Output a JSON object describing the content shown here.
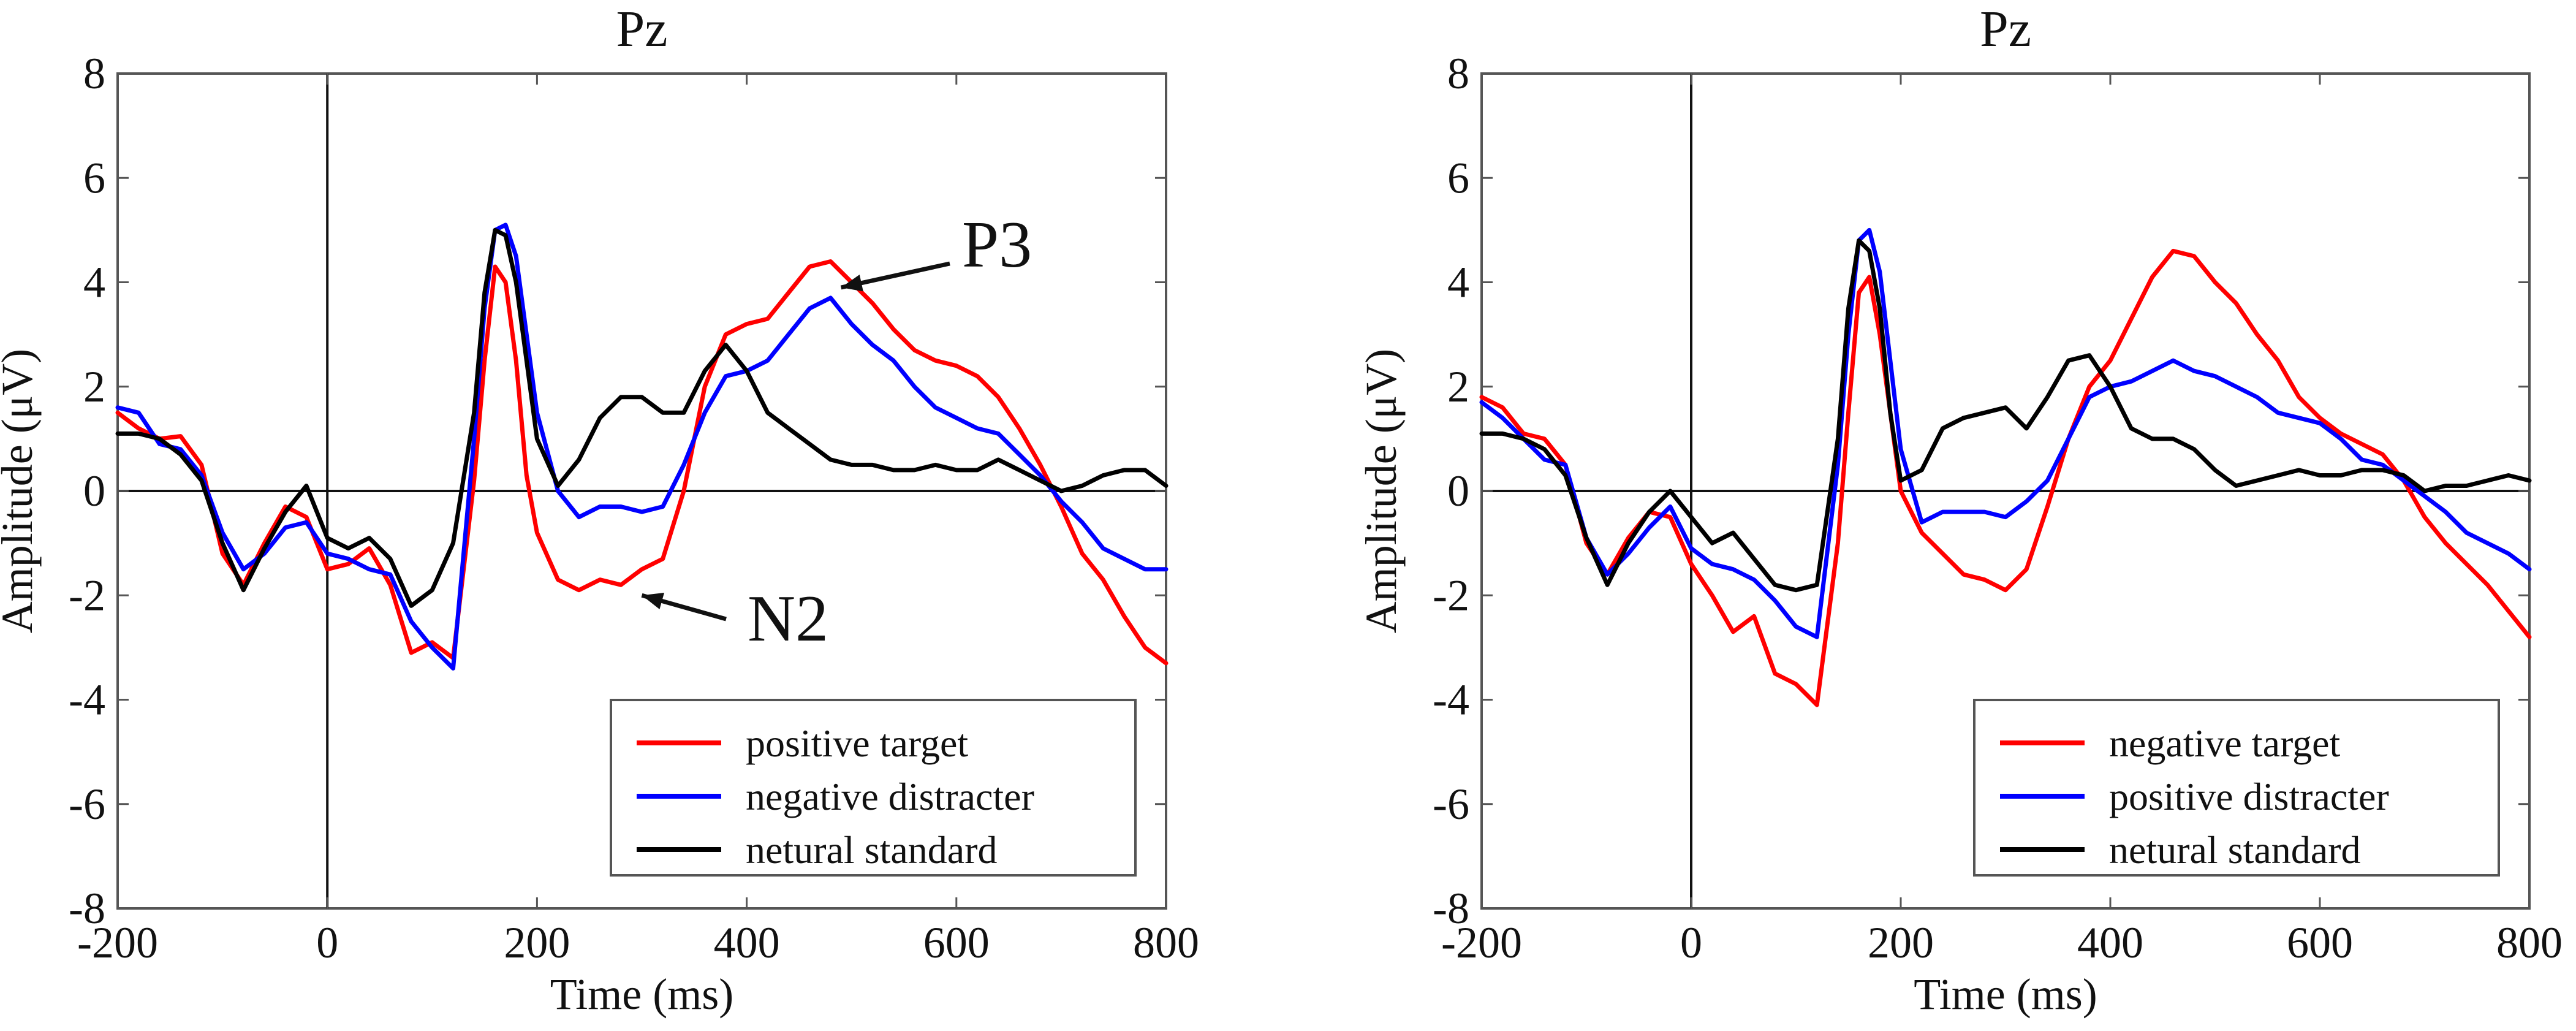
{
  "chart_data": [
    {
      "type": "line",
      "title": "Pz",
      "xlabel": "Time (ms)",
      "ylabel": "Amplitude (μV)",
      "xlim": [
        -200,
        800
      ],
      "ylim": [
        -8,
        8
      ],
      "x_ticks": [
        -200,
        0,
        200,
        400,
        600,
        800
      ],
      "x_tick_labels": [
        "-200",
        "0",
        "200",
        "400",
        "600",
        "800"
      ],
      "y_ticks": [
        -8,
        -6,
        -4,
        -2,
        0,
        2,
        4,
        6,
        8
      ],
      "y_tick_labels": [
        "-8",
        "-6",
        "-4",
        "-2",
        "0",
        "2",
        "4",
        "6",
        "8"
      ],
      "legend_position": "bottom-right",
      "annotations": [
        {
          "text": "P3",
          "target": [
            490,
            3.9
          ]
        },
        {
          "text": "N2",
          "target": [
            300,
            -2.0
          ]
        }
      ],
      "series": [
        {
          "name": "positive target",
          "color": "#ff0000",
          "x": [
            -200,
            -180,
            -160,
            -140,
            -120,
            -100,
            -80,
            -60,
            -40,
            -20,
            0,
            20,
            40,
            60,
            80,
            100,
            120,
            140,
            150,
            160,
            170,
            180,
            190,
            200,
            220,
            240,
            260,
            280,
            300,
            320,
            340,
            360,
            380,
            400,
            420,
            440,
            460,
            480,
            500,
            520,
            540,
            560,
            580,
            600,
            620,
            640,
            660,
            680,
            700,
            720,
            740,
            760,
            780,
            800
          ],
          "values": [
            1.5,
            1.2,
            1.0,
            1.05,
            0.5,
            -1.2,
            -1.8,
            -1.0,
            -0.3,
            -0.5,
            -1.5,
            -1.4,
            -1.1,
            -1.8,
            -3.1,
            -2.9,
            -3.2,
            0.2,
            2.5,
            4.3,
            4.0,
            2.5,
            0.3,
            -0.8,
            -1.7,
            -1.9,
            -1.7,
            -1.8,
            -1.5,
            -1.3,
            0.0,
            2.0,
            3.0,
            3.2,
            3.3,
            3.8,
            4.3,
            4.4,
            4.0,
            3.6,
            3.1,
            2.7,
            2.5,
            2.4,
            2.2,
            1.8,
            1.2,
            0.5,
            -0.3,
            -1.2,
            -1.7,
            -2.4,
            -3.0,
            -3.3
          ]
        },
        {
          "name": "negative distracter",
          "color": "#0000ff",
          "x": [
            -200,
            -180,
            -160,
            -140,
            -120,
            -100,
            -80,
            -60,
            -40,
            -20,
            0,
            20,
            40,
            60,
            80,
            100,
            120,
            140,
            150,
            160,
            170,
            180,
            190,
            200,
            220,
            240,
            260,
            280,
            300,
            320,
            340,
            360,
            380,
            400,
            420,
            440,
            460,
            480,
            500,
            520,
            540,
            560,
            580,
            600,
            620,
            640,
            660,
            680,
            700,
            720,
            740,
            760,
            780,
            800
          ],
          "values": [
            1.6,
            1.5,
            0.9,
            0.8,
            0.3,
            -0.8,
            -1.5,
            -1.2,
            -0.7,
            -0.6,
            -1.2,
            -1.3,
            -1.5,
            -1.6,
            -2.5,
            -3.0,
            -3.4,
            1.0,
            3.5,
            5.0,
            5.1,
            4.5,
            3.0,
            1.5,
            0.0,
            -0.5,
            -0.3,
            -0.3,
            -0.4,
            -0.3,
            0.5,
            1.5,
            2.2,
            2.3,
            2.5,
            3.0,
            3.5,
            3.7,
            3.2,
            2.8,
            2.5,
            2.0,
            1.6,
            1.4,
            1.2,
            1.1,
            0.7,
            0.3,
            -0.2,
            -0.6,
            -1.1,
            -1.3,
            -1.5,
            -1.5
          ]
        },
        {
          "name": "netural standard",
          "color": "#000000",
          "x": [
            -200,
            -180,
            -160,
            -140,
            -120,
            -100,
            -80,
            -60,
            -40,
            -20,
            0,
            20,
            40,
            60,
            80,
            100,
            120,
            140,
            150,
            160,
            170,
            180,
            190,
            200,
            220,
            240,
            260,
            280,
            300,
            320,
            340,
            360,
            380,
            400,
            420,
            440,
            460,
            480,
            500,
            520,
            540,
            560,
            580,
            600,
            620,
            640,
            660,
            680,
            700,
            720,
            740,
            760,
            780,
            800
          ],
          "values": [
            1.1,
            1.1,
            1.0,
            0.7,
            0.2,
            -1.0,
            -1.9,
            -1.1,
            -0.4,
            0.1,
            -0.9,
            -1.1,
            -0.9,
            -1.3,
            -2.2,
            -1.9,
            -1.0,
            1.5,
            3.8,
            5.0,
            4.9,
            4.0,
            2.5,
            1.0,
            0.1,
            0.6,
            1.4,
            1.8,
            1.8,
            1.5,
            1.5,
            2.3,
            2.8,
            2.3,
            1.5,
            1.2,
            0.9,
            0.6,
            0.5,
            0.5,
            0.4,
            0.4,
            0.5,
            0.4,
            0.4,
            0.6,
            0.4,
            0.2,
            0.0,
            0.1,
            0.3,
            0.4,
            0.4,
            0.1
          ]
        }
      ]
    },
    {
      "type": "line",
      "title": "Pz",
      "xlabel": "Time (ms)",
      "ylabel": "Amplitude (μV)",
      "xlim": [
        -200,
        800
      ],
      "ylim": [
        -8,
        8
      ],
      "x_ticks": [
        -200,
        0,
        200,
        400,
        600,
        800
      ],
      "x_tick_labels": [
        "-200",
        "0",
        "200",
        "400",
        "600",
        "800"
      ],
      "y_ticks": [
        -8,
        -6,
        -4,
        -2,
        0,
        2,
        4,
        6,
        8
      ],
      "y_tick_labels": [
        "-8",
        "-6",
        "-4",
        "-2",
        "0",
        "2",
        "4",
        "6",
        "8"
      ],
      "legend_position": "bottom-right",
      "annotations": [],
      "series": [
        {
          "name": "negative target",
          "color": "#ff0000",
          "x": [
            -200,
            -180,
            -160,
            -140,
            -120,
            -100,
            -80,
            -60,
            -40,
            -20,
            0,
            20,
            40,
            60,
            80,
            100,
            120,
            140,
            150,
            160,
            170,
            180,
            190,
            200,
            220,
            240,
            260,
            280,
            300,
            320,
            340,
            360,
            380,
            400,
            420,
            440,
            460,
            480,
            500,
            520,
            540,
            560,
            580,
            600,
            620,
            640,
            660,
            680,
            700,
            720,
            740,
            760,
            780,
            800
          ],
          "values": [
            1.8,
            1.6,
            1.1,
            1.0,
            0.5,
            -1.0,
            -1.6,
            -0.9,
            -0.4,
            -0.5,
            -1.4,
            -2.0,
            -2.7,
            -2.4,
            -3.5,
            -3.7,
            -4.1,
            -1.0,
            1.5,
            3.8,
            4.1,
            3.0,
            1.5,
            0.0,
            -0.8,
            -1.2,
            -1.6,
            -1.7,
            -1.9,
            -1.5,
            -0.3,
            1.0,
            2.0,
            2.5,
            3.3,
            4.1,
            4.6,
            4.5,
            4.0,
            3.6,
            3.0,
            2.5,
            1.8,
            1.4,
            1.1,
            0.9,
            0.7,
            0.2,
            -0.5,
            -1.0,
            -1.4,
            -1.8,
            -2.3,
            -2.8
          ]
        },
        {
          "name": "positive distracter",
          "color": "#0000ff",
          "x": [
            -200,
            -180,
            -160,
            -140,
            -120,
            -100,
            -80,
            -60,
            -40,
            -20,
            0,
            20,
            40,
            60,
            80,
            100,
            120,
            140,
            150,
            160,
            170,
            180,
            190,
            200,
            220,
            240,
            260,
            280,
            300,
            320,
            340,
            360,
            380,
            400,
            420,
            440,
            460,
            480,
            500,
            520,
            540,
            560,
            580,
            600,
            620,
            640,
            660,
            680,
            700,
            720,
            740,
            760,
            780,
            800
          ],
          "values": [
            1.7,
            1.4,
            1.0,
            0.6,
            0.5,
            -0.9,
            -1.6,
            -1.2,
            -0.7,
            -0.3,
            -1.1,
            -1.4,
            -1.5,
            -1.7,
            -2.1,
            -2.6,
            -2.8,
            0.5,
            3.0,
            4.8,
            5.0,
            4.2,
            2.5,
            0.8,
            -0.6,
            -0.4,
            -0.4,
            -0.4,
            -0.5,
            -0.2,
            0.2,
            1.0,
            1.8,
            2.0,
            2.1,
            2.3,
            2.5,
            2.3,
            2.2,
            2.0,
            1.8,
            1.5,
            1.4,
            1.3,
            1.0,
            0.6,
            0.5,
            0.2,
            -0.1,
            -0.4,
            -0.8,
            -1.0,
            -1.2,
            -1.5
          ]
        },
        {
          "name": "netural standard",
          "color": "#000000",
          "x": [
            -200,
            -180,
            -160,
            -140,
            -120,
            -100,
            -80,
            -60,
            -40,
            -20,
            0,
            20,
            40,
            60,
            80,
            100,
            120,
            140,
            150,
            160,
            170,
            180,
            190,
            200,
            220,
            240,
            260,
            280,
            300,
            320,
            340,
            360,
            380,
            400,
            420,
            440,
            460,
            480,
            500,
            520,
            540,
            560,
            580,
            600,
            620,
            640,
            660,
            680,
            700,
            720,
            740,
            760,
            780,
            800
          ],
          "values": [
            1.1,
            1.1,
            1.0,
            0.8,
            0.3,
            -0.9,
            -1.8,
            -1.0,
            -0.4,
            0.0,
            -0.5,
            -1.0,
            -0.8,
            -1.3,
            -1.8,
            -1.9,
            -1.8,
            1.0,
            3.5,
            4.8,
            4.6,
            3.5,
            1.5,
            0.2,
            0.4,
            1.2,
            1.4,
            1.5,
            1.6,
            1.2,
            1.8,
            2.5,
            2.6,
            2.0,
            1.2,
            1.0,
            1.0,
            0.8,
            0.4,
            0.1,
            0.2,
            0.3,
            0.4,
            0.3,
            0.3,
            0.4,
            0.4,
            0.3,
            0.0,
            0.1,
            0.1,
            0.2,
            0.3,
            0.2
          ]
        }
      ]
    }
  ]
}
